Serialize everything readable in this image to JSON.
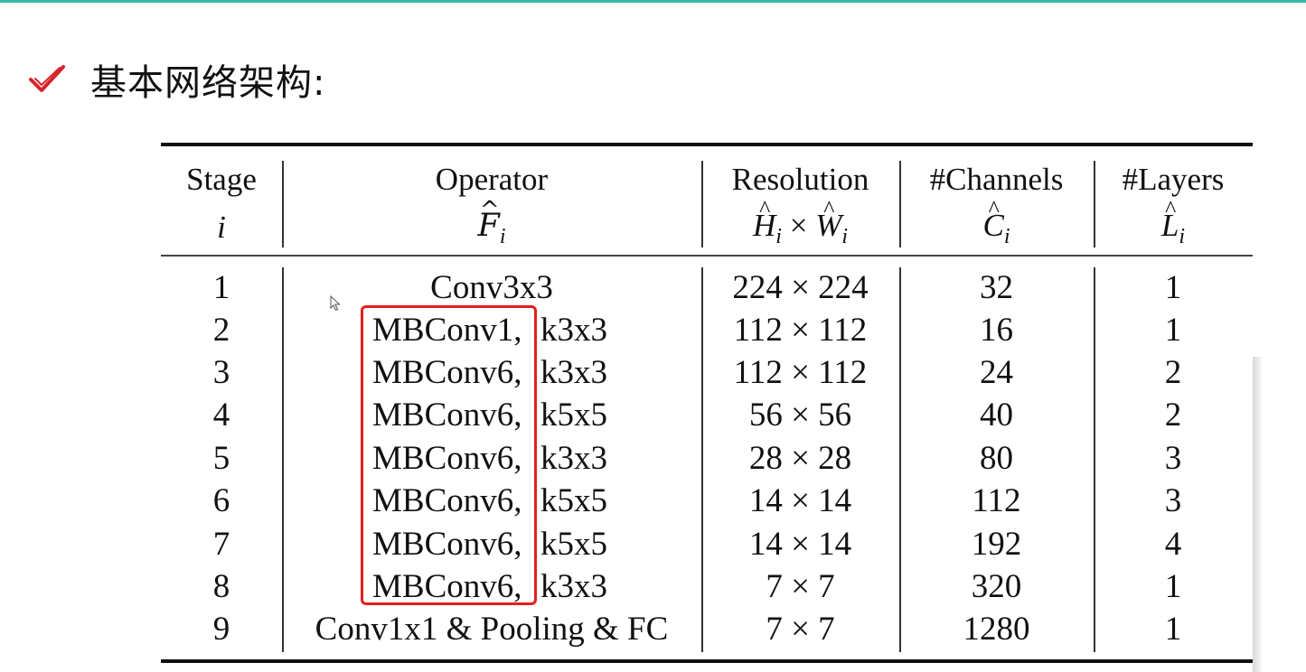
{
  "heading": {
    "text": "基本网络架构:",
    "icon": "checkmark-icon",
    "icon_color": "#d8232a"
  },
  "table": {
    "headers": {
      "stage": {
        "label": "Stage",
        "symbol": "i"
      },
      "operator": {
        "label": "Operator",
        "symbol": "F",
        "sub": "i"
      },
      "resolution": {
        "label": "Resolution",
        "symbol_h": "H",
        "sub_h": "i",
        "times": "×",
        "symbol_w": "W",
        "sub_w": "i"
      },
      "channels": {
        "label": "#Channels",
        "symbol": "C",
        "sub": "i"
      },
      "layers": {
        "label": "#Layers",
        "symbol": "L",
        "sub": "i"
      }
    },
    "rows": [
      {
        "stage": "1",
        "operator_a": "Conv3x3",
        "operator_b": "",
        "resolution": "224 × 224",
        "channels": "32",
        "layers": "1"
      },
      {
        "stage": "2",
        "operator_a": "MBConv1,",
        "operator_b": "k3x3",
        "resolution": "112 × 112",
        "channels": "16",
        "layers": "1"
      },
      {
        "stage": "3",
        "operator_a": "MBConv6,",
        "operator_b": "k3x3",
        "resolution": "112 × 112",
        "channels": "24",
        "layers": "2"
      },
      {
        "stage": "4",
        "operator_a": "MBConv6,",
        "operator_b": "k5x5",
        "resolution": "56 × 56",
        "channels": "40",
        "layers": "2"
      },
      {
        "stage": "5",
        "operator_a": "MBConv6,",
        "operator_b": "k3x3",
        "resolution": "28 × 28",
        "channels": "80",
        "layers": "3"
      },
      {
        "stage": "6",
        "operator_a": "MBConv6,",
        "operator_b": "k5x5",
        "resolution": "14 × 14",
        "channels": "112",
        "layers": "3"
      },
      {
        "stage": "7",
        "operator_a": "MBConv6,",
        "operator_b": "k5x5",
        "resolution": "14 × 14",
        "channels": "192",
        "layers": "4"
      },
      {
        "stage": "8",
        "operator_a": "MBConv6,",
        "operator_b": "k3x3",
        "resolution": "7 × 7",
        "channels": "320",
        "layers": "1"
      },
      {
        "stage": "9",
        "operator_a": "Conv1x1 & Pooling & FC",
        "operator_b": "",
        "resolution": "7 × 7",
        "channels": "1280",
        "layers": "1"
      }
    ]
  },
  "highlight_color": "#e31e1e",
  "accent_color": "#35b8a8"
}
